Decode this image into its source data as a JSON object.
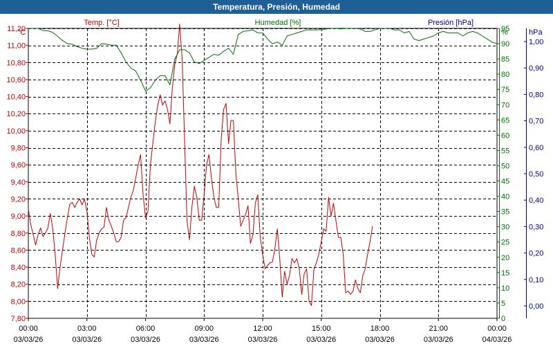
{
  "chart_data": {
    "type": "line",
    "title": "Temperatura, Presión, Humedad",
    "series": [
      {
        "name": "Temp. [°C]",
        "axis": "left",
        "unit": "°C",
        "color": "#c00000",
        "points": [
          [
            0,
            9.08
          ],
          [
            0.25,
            8.9
          ],
          [
            0.5,
            8.78
          ],
          [
            0.75,
            8.66
          ],
          [
            1.0,
            8.78
          ],
          [
            1.25,
            8.86
          ],
          [
            1.5,
            8.76
          ],
          [
            1.75,
            8.8
          ],
          [
            2.0,
            8.86
          ],
          [
            2.25,
            9.03
          ],
          [
            2.5,
            8.85
          ],
          [
            2.75,
            8.55
          ],
          [
            3.0,
            8.15
          ],
          [
            3.25,
            8.4
          ],
          [
            3.5,
            8.6
          ],
          [
            3.75,
            8.8
          ],
          [
            4.0,
            8.98
          ],
          [
            4.25,
            9.14
          ],
          [
            4.5,
            9.16
          ],
          [
            4.75,
            9.1
          ],
          [
            5.0,
            9.16
          ],
          [
            5.25,
            9.2
          ],
          [
            5.5,
            9.13
          ],
          [
            5.75,
            9.2
          ],
          [
            6.0,
            9.05
          ],
          [
            6.25,
            8.75
          ],
          [
            6.5,
            8.55
          ],
          [
            6.75,
            8.52
          ],
          [
            7.0,
            8.72
          ],
          [
            7.25,
            8.8
          ],
          [
            7.5,
            8.85
          ],
          [
            7.75,
            8.87
          ],
          [
            8.0,
            9.1
          ],
          [
            8.25,
            8.95
          ],
          [
            8.5,
            8.88
          ],
          [
            8.75,
            8.8
          ],
          [
            9.0,
            8.7
          ],
          [
            9.25,
            8.7
          ],
          [
            9.5,
            8.75
          ],
          [
            9.75,
            8.95
          ],
          [
            10.0,
            8.98
          ],
          [
            10.25,
            9.1
          ],
          [
            10.5,
            9.22
          ],
          [
            10.75,
            9.3
          ],
          [
            11.0,
            9.45
          ],
          [
            11.25,
            9.6
          ],
          [
            11.5,
            9.72
          ],
          [
            11.75,
            9.25
          ],
          [
            12.0,
            8.98
          ],
          [
            12.25,
            9.05
          ],
          [
            12.5,
            9.6
          ],
          [
            12.75,
            9.85
          ],
          [
            13.0,
            10.1
          ],
          [
            13.25,
            10.3
          ],
          [
            13.5,
            10.42
          ],
          [
            13.75,
            10.3
          ],
          [
            14.0,
            10.35
          ],
          [
            14.25,
            10.25
          ],
          [
            14.5,
            10.08
          ],
          [
            14.75,
            10.5
          ],
          [
            15.0,
            10.78
          ],
          [
            15.25,
            10.9
          ],
          [
            15.5,
            11.25
          ],
          [
            15.75,
            10.85
          ],
          [
            16.0,
            9.9
          ],
          [
            16.25,
            8.95
          ],
          [
            16.5,
            8.72
          ],
          [
            16.75,
            9.1
          ],
          [
            17.0,
            9.35
          ],
          [
            17.25,
            9.22
          ],
          [
            17.5,
            8.95
          ],
          [
            17.75,
            8.95
          ],
          [
            18.0,
            9.25
          ],
          [
            18.25,
            9.6
          ],
          [
            18.5,
            9.72
          ],
          [
            18.75,
            9.45
          ],
          [
            19.0,
            9.22
          ],
          [
            19.25,
            9.1
          ],
          [
            19.5,
            9.1
          ],
          [
            19.75,
            9.9
          ],
          [
            20.0,
            10.25
          ],
          [
            20.25,
            10.32
          ],
          [
            20.5,
            9.85
          ],
          [
            20.75,
            10.12
          ],
          [
            21.0,
            10.12
          ],
          [
            21.25,
            9.5
          ],
          [
            21.5,
            9.2
          ],
          [
            21.75,
            8.88
          ],
          [
            22.0,
            8.95
          ],
          [
            22.25,
            9.02
          ],
          [
            22.5,
            9.12
          ],
          [
            22.75,
            8.68
          ],
          [
            23.0,
            8.78
          ],
          [
            23.25,
            9.15
          ],
          [
            23.5,
            9.25
          ],
          [
            23.75,
            8.75
          ],
          [
            24.0,
            8.55
          ],
          [
            24.25,
            8.38
          ],
          [
            24.5,
            8.42
          ],
          [
            24.75,
            8.45
          ],
          [
            25.0,
            8.46
          ],
          [
            25.25,
            8.62
          ],
          [
            25.5,
            8.85
          ],
          [
            25.75,
            8.5
          ],
          [
            26.0,
            8.05
          ],
          [
            26.25,
            8.35
          ],
          [
            26.5,
            8.2
          ],
          [
            26.75,
            8.3
          ],
          [
            27.0,
            8.5
          ],
          [
            27.25,
            8.45
          ],
          [
            27.5,
            8.5
          ],
          [
            27.75,
            8.38
          ],
          [
            28.0,
            8.08
          ],
          [
            28.25,
            8.32
          ],
          [
            28.5,
            8.38
          ],
          [
            28.75,
            8.0
          ],
          [
            29.0,
            7.95
          ],
          [
            29.25,
            8.38
          ],
          [
            29.5,
            8.45
          ],
          [
            29.75,
            8.55
          ],
          [
            30.0,
            8.7
          ],
          [
            30.25,
            8.85
          ],
          [
            30.5,
            8.82
          ],
          [
            30.75,
            9.22
          ],
          [
            31.0,
            9.0
          ],
          [
            31.25,
            9.15
          ],
          [
            31.5,
            8.95
          ],
          [
            31.75,
            8.75
          ],
          [
            32.0,
            8.75
          ],
          [
            32.25,
            8.55
          ],
          [
            32.5,
            8.1
          ],
          [
            32.75,
            8.12
          ],
          [
            33.0,
            8.08
          ],
          [
            33.25,
            8.12
          ],
          [
            33.5,
            8.25
          ],
          [
            33.75,
            8.15
          ],
          [
            34.0,
            8.1
          ],
          [
            34.25,
            8.3
          ],
          [
            34.5,
            8.38
          ],
          [
            34.75,
            8.55
          ],
          [
            35.0,
            8.7
          ],
          [
            35.25,
            8.88
          ]
        ]
      },
      {
        "name": "Humedad [%]",
        "axis": "right1",
        "unit": "%",
        "color": "#007000",
        "points": [
          [
            0,
            95.0
          ],
          [
            0.5,
            95.0
          ],
          [
            1.0,
            95.0
          ],
          [
            1.5,
            94.3
          ],
          [
            2.0,
            94.2
          ],
          [
            2.5,
            93.7
          ],
          [
            3.0,
            92.4
          ],
          [
            3.5,
            91.0
          ],
          [
            4.0,
            90.0
          ],
          [
            4.5,
            89.8
          ],
          [
            5.0,
            89.0
          ],
          [
            5.5,
            88.5
          ],
          [
            6.0,
            88.2
          ],
          [
            6.5,
            88.2
          ],
          [
            7.0,
            88.5
          ],
          [
            7.5,
            90.0
          ],
          [
            8.0,
            89.8
          ],
          [
            8.5,
            89.5
          ],
          [
            9.0,
            89.5
          ],
          [
            9.5,
            87.0
          ],
          [
            10.0,
            84.0
          ],
          [
            10.5,
            82.0
          ],
          [
            11.0,
            81.0
          ],
          [
            11.5,
            78.0
          ],
          [
            12.0,
            74.5
          ],
          [
            12.5,
            75.5
          ],
          [
            13.0,
            78.0
          ],
          [
            13.5,
            79.5
          ],
          [
            14.0,
            79.5
          ],
          [
            14.5,
            76.5
          ],
          [
            15.0,
            85.0
          ],
          [
            15.5,
            88.0
          ],
          [
            16.0,
            88.0
          ],
          [
            16.5,
            87.0
          ],
          [
            17.0,
            84.0
          ],
          [
            17.5,
            83.5
          ],
          [
            18.0,
            84.5
          ],
          [
            18.5,
            85.5
          ],
          [
            19.0,
            86.5
          ],
          [
            19.5,
            86.2
          ],
          [
            20.0,
            87.5
          ],
          [
            20.5,
            88.5
          ],
          [
            21.0,
            86.5
          ],
          [
            21.5,
            93.0
          ],
          [
            22.0,
            94.0
          ],
          [
            22.5,
            94.2
          ],
          [
            23.0,
            94.5
          ],
          [
            23.5,
            93.5
          ],
          [
            24.0,
            93.5
          ],
          [
            24.5,
            91.5
          ],
          [
            25.0,
            90.0
          ],
          [
            25.5,
            90.5
          ],
          [
            26.0,
            89.5
          ],
          [
            26.5,
            92.5
          ],
          [
            27.0,
            93.0
          ],
          [
            27.5,
            93.5
          ],
          [
            28.0,
            94.0
          ],
          [
            28.5,
            94.5
          ],
          [
            29.0,
            94.5
          ],
          [
            29.5,
            94.5
          ],
          [
            30.0,
            94.6
          ],
          [
            30.5,
            94.8
          ],
          [
            31.0,
            95.0
          ],
          [
            31.5,
            95.0
          ],
          [
            32.0,
            94.8
          ],
          [
            32.5,
            95.0
          ],
          [
            33.0,
            95.0
          ],
          [
            33.5,
            95.0
          ],
          [
            34.0,
            94.8
          ],
          [
            34.5,
            94.0
          ],
          [
            35.0,
            94.0
          ],
          [
            35.5,
            94.5
          ],
          [
            36.0,
            95.0
          ],
          [
            36.5,
            95.0
          ],
          [
            37.0,
            95.0
          ],
          [
            37.5,
            94.5
          ],
          [
            38.0,
            94.5
          ],
          [
            38.5,
            93.5
          ],
          [
            39.0,
            94.0
          ],
          [
            39.5,
            91.5
          ],
          [
            40.0,
            91.0
          ],
          [
            40.5,
            91.5
          ],
          [
            41.0,
            92.0
          ],
          [
            41.5,
            92.5
          ],
          [
            42.0,
            93.5
          ],
          [
            42.5,
            94.0
          ],
          [
            43.0,
            93.5
          ],
          [
            43.5,
            93.5
          ],
          [
            44.0,
            93.5
          ],
          [
            44.5,
            92.5
          ],
          [
            45.0,
            93.5
          ],
          [
            45.5,
            94.0
          ],
          [
            46.0,
            93.5
          ],
          [
            46.5,
            92.5
          ],
          [
            47.0,
            91.5
          ],
          [
            47.5,
            90.5
          ],
          [
            48.0,
            90.0
          ]
        ]
      }
    ],
    "x_unit": "hours since 03/03/26 00:00",
    "x_ticks": [
      {
        "time": "00:00",
        "date": "03/03/26"
      },
      {
        "time": "03:00",
        "date": "03/03/26"
      },
      {
        "time": "06:00",
        "date": "03/03/26"
      },
      {
        "time": "09:00",
        "date": "03/03/26"
      },
      {
        "time": "12:00",
        "date": "03/03/26"
      },
      {
        "time": "15:00",
        "date": "03/03/26"
      },
      {
        "time": "18:00",
        "date": "03/03/26"
      },
      {
        "time": "21:00",
        "date": "03/03/26"
      },
      {
        "time": "00:00",
        "date": "04/03/26"
      }
    ],
    "axes": {
      "left": {
        "label": "Temp. [°C]",
        "unit_label": "°C",
        "color": "#c00000",
        "min": 7.8,
        "max": 11.2,
        "ticks": [
          "7,80",
          "8,00",
          "8,20",
          "8,40",
          "8,60",
          "8,80",
          "9,00",
          "9,20",
          "9,40",
          "9,60",
          "9,80",
          "10,00",
          "10,20",
          "10,40",
          "10,60",
          "10,80",
          "11,00",
          "11,20"
        ]
      },
      "right1": {
        "label": "Humedad [%]",
        "unit_label": "%",
        "color": "#007000",
        "min": 0,
        "max": 95,
        "ticks": [
          "0",
          "5",
          "10",
          "15",
          "20",
          "25",
          "30",
          "35",
          "40",
          "45",
          "50",
          "55",
          "60",
          "65",
          "70",
          "75",
          "80",
          "85",
          "90",
          "95"
        ]
      },
      "right2": {
        "label": "Presión [hPa]",
        "unit_label": "hPa",
        "color": "#000080",
        "min": 0.0,
        "max": 1.0,
        "ticks": [
          "0,00",
          "0,10",
          "0,20",
          "0,30",
          "0,40",
          "0,50",
          "0,60",
          "0,70",
          "0,80",
          "0,90",
          "1,00"
        ]
      }
    },
    "grid": true,
    "grid_style": "dashed"
  }
}
